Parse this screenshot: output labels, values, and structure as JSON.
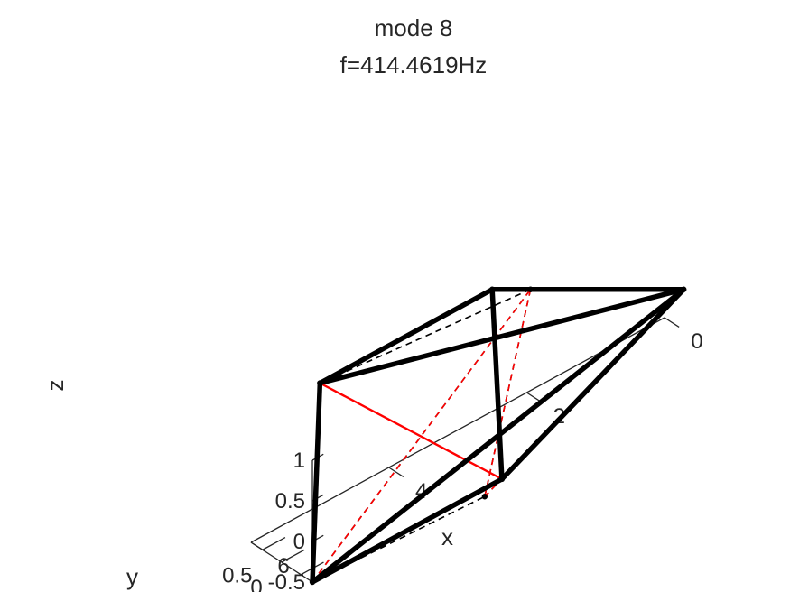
{
  "chart_data": {
    "type": "3d-wireframe",
    "title": [
      "mode 8",
      "f=414.4619Hz"
    ],
    "xlabel": "x",
    "ylabel": "y",
    "zlabel": "z",
    "x_ticks": [
      {
        "value": 0,
        "label": "0"
      },
      {
        "value": 2,
        "label": "2"
      },
      {
        "value": 4,
        "label": "4"
      },
      {
        "value": 6,
        "label": "6"
      }
    ],
    "y_ticks": [
      {
        "value": -0.5,
        "label": "-0.5"
      },
      {
        "value": 0,
        "label": "0"
      },
      {
        "value": 0.5,
        "label": "0.5"
      }
    ],
    "z_ticks": [
      {
        "value": 1,
        "label": "1"
      },
      {
        "value": 0.5,
        "label": "0.5"
      },
      {
        "value": 0,
        "label": "0"
      },
      {
        "value": -0.5,
        "label": "-0.5"
      }
    ],
    "xlim": [
      0,
      6
    ],
    "ylim": [
      -0.8,
      0.8
    ],
    "zlim": [
      -0.5,
      1
    ],
    "colors": {
      "deformed": "#000000",
      "undeformed": "#000000",
      "internal": "#ff0000"
    },
    "series": [
      {
        "style": "black-solid-thick",
        "segments": [
          [
            [
              6,
              -0.8,
              -0.5
            ],
            [
              3.25,
              -0.8,
              -0.5
            ]
          ],
          [
            [
              3.25,
              -0.8,
              -0.5
            ],
            [
              2.5,
              0.8,
              1.0
            ]
          ],
          [
            [
              2.5,
              0.8,
              1.0
            ],
            [
              5.0,
              0.8,
              1.0
            ]
          ],
          [
            [
              5.0,
              0.8,
              1.0
            ],
            [
              6,
              -0.8,
              -0.5
            ]
          ],
          [
            [
              5.0,
              0.8,
              1.0
            ],
            [
              0,
              0.3,
              0
            ]
          ],
          [
            [
              0,
              0.3,
              0
            ],
            [
              6,
              -0.8,
              -0.5
            ]
          ],
          [
            [
              0,
              0.3,
              0
            ],
            [
              2.5,
              0.8,
              1.0
            ]
          ],
          [
            [
              0,
              0.3,
              0
            ],
            [
              3.25,
              -0.8,
              -0.5
            ]
          ]
        ]
      },
      {
        "style": "black-dashed",
        "segments": [
          [
            [
              6,
              -0.8,
              -0.5
            ],
            [
              3.5,
              -0.8,
              -0.6
            ]
          ],
          [
            [
              3.5,
              -0.8,
              -0.6
            ],
            [
              2.0,
              0.7,
              0.8
            ]
          ],
          [
            [
              2.0,
              0.7,
              0.8
            ],
            [
              5.0,
              0.8,
              1.0
            ]
          ],
          [
            [
              5.0,
              0.8,
              1.0
            ],
            [
              3.25,
              -0.8,
              -0.5
            ]
          ],
          [
            [
              2.5,
              0.8,
              1.0
            ],
            [
              5.0,
              0.8,
              1.0
            ]
          ],
          [
            [
              0,
              0.3,
              0
            ],
            [
              2.0,
              0.7,
              0.8
            ]
          ],
          [
            [
              0,
              0.3,
              0
            ],
            [
              3.5,
              -0.8,
              -0.6
            ]
          ],
          [
            [
              6,
              -0.8,
              -0.5
            ],
            [
              2.0,
              0.7,
              0.8
            ]
          ],
          [
            [
              5.0,
              0.8,
              1.0
            ],
            [
              6,
              -0.8,
              -0.5
            ]
          ]
        ]
      },
      {
        "style": "red-solid",
        "segments": [
          [
            [
              6,
              -0.8,
              -0.5
            ],
            [
              5.0,
              0.8,
              1.0
            ]
          ],
          [
            [
              2.5,
              0.8,
              1.0
            ],
            [
              3.25,
              -0.8,
              -0.5
            ]
          ],
          [
            [
              5.0,
              0.8,
              1.0
            ],
            [
              3.25,
              -0.8,
              -0.5
            ]
          ],
          [
            [
              6,
              -0.8,
              -0.5
            ],
            [
              3.25,
              -0.8,
              -0.5
            ]
          ]
        ]
      },
      {
        "style": "red-dashed",
        "segments": [
          [
            [
              2.0,
              0.7,
              0.8
            ],
            [
              3.5,
              -0.8,
              -0.6
            ]
          ],
          [
            [
              6,
              -0.8,
              -0.5
            ],
            [
              2.0,
              0.7,
              0.8
            ]
          ],
          [
            [
              0,
              0.3,
              0
            ],
            [
              3.5,
              -0.8,
              -0.6
            ]
          ]
        ]
      }
    ]
  }
}
